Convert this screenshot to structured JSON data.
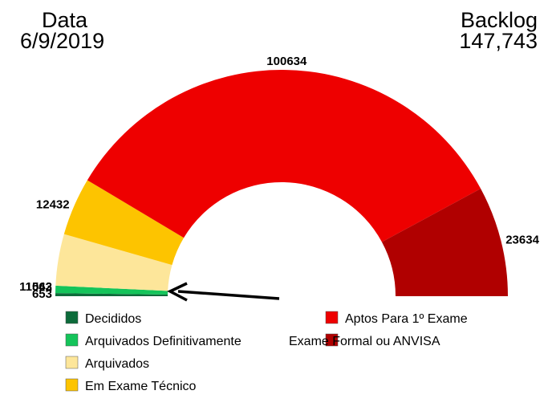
{
  "header": {
    "date_label": "Data",
    "date_value": "6/9/2019",
    "backlog_label": "Backlog",
    "backlog_value": "147,743"
  },
  "chart_data": {
    "type": "pie",
    "shape": "half-donut",
    "segments": [
      {
        "name": "Decididos",
        "value": 653,
        "label": "653",
        "color": "#0d6b3a"
      },
      {
        "name": "Arquivados Definitivamente",
        "value": 1562,
        "label": "1562",
        "color": "#14c45a"
      },
      {
        "name": "Arquivados",
        "value": 11043,
        "label": "11043",
        "color": "#fde69a"
      },
      {
        "name": "Em Exame Técnico",
        "value": 12432,
        "label": "12432",
        "color": "#fdc400"
      },
      {
        "name": "Aptos Para 1º Exame",
        "value": 100634,
        "label": "100634",
        "color": "#ee0000"
      },
      {
        "name": "Exame Formal ou ANVISA",
        "value": 23634,
        "label": "23634",
        "color": "#b00000"
      }
    ],
    "legend": {
      "position": "bottom",
      "items": [
        {
          "label": "Decididos",
          "color": "#0d6b3a"
        },
        {
          "label": "Arquivados Definitivamente",
          "color": "#14c45a"
        },
        {
          "label": "Arquivados",
          "color": "#fde69a"
        },
        {
          "label": "Em Exame Técnico",
          "color": "#fdc400"
        },
        {
          "label": "Aptos Para 1º Exame",
          "color": "#ee0000"
        },
        {
          "label": "Exame Formal ou ANVISA",
          "color": "#b00000"
        }
      ]
    }
  }
}
